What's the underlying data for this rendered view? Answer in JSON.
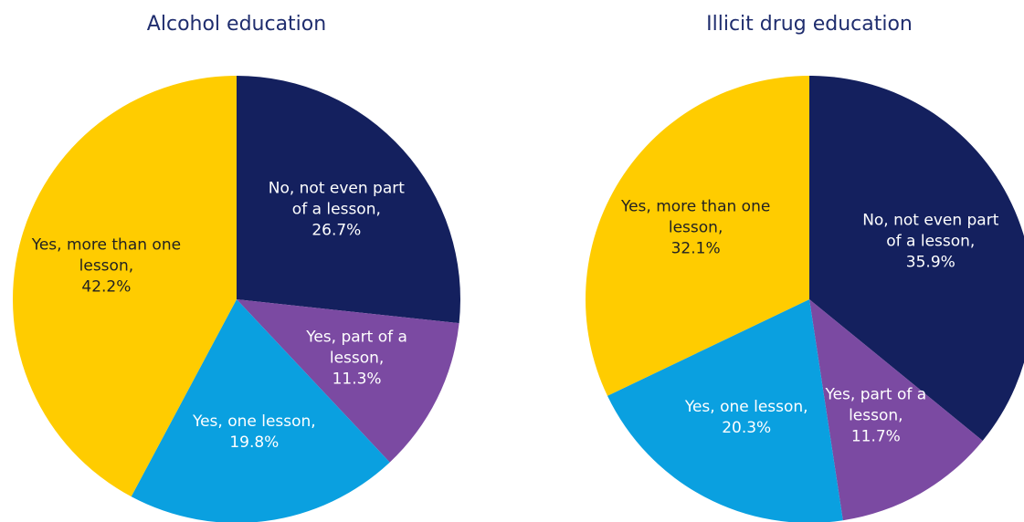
{
  "chart_data": [
    {
      "type": "pie",
      "title": "Alcohol education",
      "categories": [
        "No, not even part of a lesson,",
        "Yes, part of a lesson,",
        "Yes, one lesson,",
        "Yes, more than one lesson,"
      ],
      "values": [
        26.7,
        11.3,
        19.8,
        42.2
      ],
      "value_labels": [
        "26.7%",
        "11.3%",
        "19.8%",
        "42.2%"
      ],
      "colors": [
        "#14205e",
        "#7b4aa2",
        "#0aa0e0",
        "#ffcc00"
      ]
    },
    {
      "type": "pie",
      "title": "Illicit drug education",
      "categories": [
        "No, not even part of a lesson,",
        "Yes, part of a lesson,",
        "Yes, one lesson,",
        "Yes, more than one lesson,"
      ],
      "values": [
        35.9,
        11.7,
        20.3,
        32.1
      ],
      "value_labels": [
        "35.9%",
        "11.7%",
        "20.3%",
        "32.1%"
      ],
      "colors": [
        "#14205e",
        "#7b4aa2",
        "#0aa0e0",
        "#ffcc00"
      ]
    }
  ]
}
